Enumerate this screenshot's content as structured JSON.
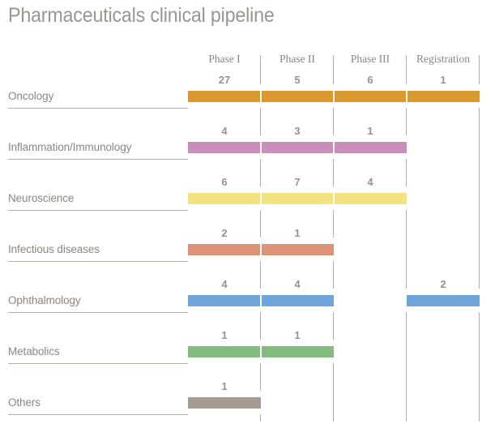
{
  "title": "Pharmaceuticals clinical pipeline",
  "colors": {
    "title_text": "#9B958E",
    "header_text": "#8B857E",
    "label_text": "#8C867F",
    "number_text": "#98928B",
    "grid_line": "#B5AEA7",
    "background": "#FFFFFF"
  },
  "chart_data": {
    "type": "bar",
    "variant": "horizontal-phase-pipeline",
    "title": "Pharmaceuticals clinical pipeline",
    "columns": [
      "Phase I",
      "Phase II",
      "Phase III",
      "Registration"
    ],
    "rows": [
      {
        "label": "Oncology",
        "color": "#D9992F",
        "values": [
          27,
          5,
          6,
          1
        ]
      },
      {
        "label": "Inflammation/Immunology",
        "color": "#C98FBA",
        "values": [
          4,
          3,
          1,
          null
        ]
      },
      {
        "label": "Neuroscience",
        "color": "#F2E37F",
        "values": [
          6,
          7,
          4,
          null
        ]
      },
      {
        "label": "Infectious diseases",
        "color": "#DD9377",
        "values": [
          2,
          1,
          null,
          null
        ]
      },
      {
        "label": "Ophthalmology",
        "color": "#6FA5DA",
        "values": [
          4,
          4,
          null,
          2
        ]
      },
      {
        "label": "Metabolics",
        "color": "#84BB7E",
        "values": [
          1,
          1,
          null,
          null
        ]
      },
      {
        "label": "Others",
        "color": "#A49B93",
        "values": [
          1,
          null,
          null,
          null
        ]
      }
    ],
    "legend": "none",
    "grid": "column-separator-lines",
    "notes": "Numbers above each bar segment are project counts per phase; a bar segment is drawn only for phases with a count."
  }
}
